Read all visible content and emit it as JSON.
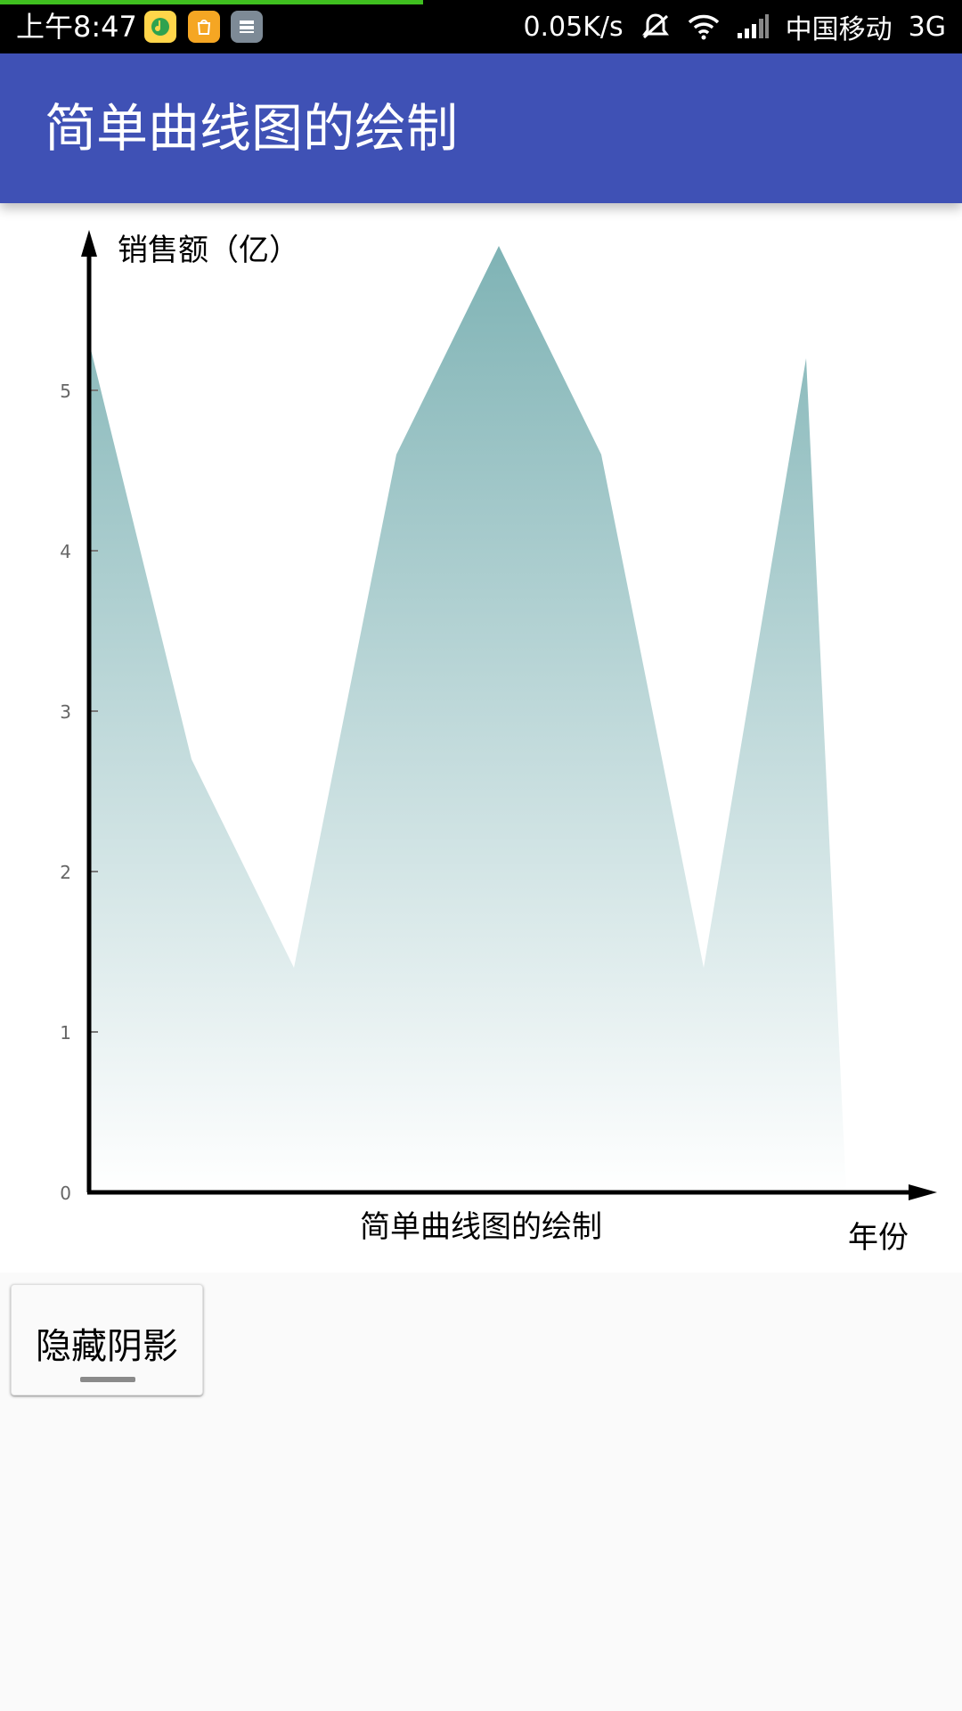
{
  "status_bar": {
    "time": "上午8:47",
    "net_speed": "0.05K/s",
    "carrier": "中国移动",
    "network": "3G",
    "progress_fraction": 0.44,
    "icons": [
      "qq-music-icon",
      "mi-store-icon",
      "storage-icon",
      "mute-icon",
      "wifi-icon",
      "signal-icon"
    ]
  },
  "app_bar": {
    "title": "简单曲线图的绘制",
    "color": "#3f51b5"
  },
  "chart_data": {
    "type": "area",
    "title": "简单曲线图的绘制",
    "ylabel": "销售额（亿）",
    "xlabel": "年份",
    "y_ticks": [
      "0",
      "1",
      "2",
      "3",
      "4",
      "5"
    ],
    "ylim": [
      0,
      6
    ],
    "grid": false,
    "fill_color_top": "#7fb3b5",
    "fill_color_bottom": "#ffffff",
    "series": [
      {
        "x": [
          0,
          1,
          2,
          3,
          4,
          5,
          6,
          7
        ],
        "values": [
          5.3,
          2.7,
          1.4,
          4.6,
          5.9,
          4.6,
          1.4,
          5.2
        ]
      }
    ]
  },
  "button": {
    "label": "隐藏阴影"
  }
}
